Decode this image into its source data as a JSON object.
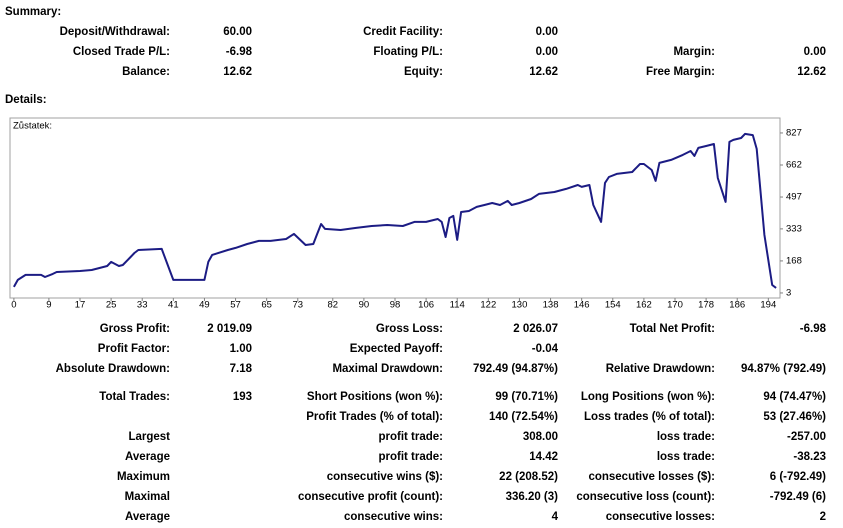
{
  "summary": {
    "title": "Summary:",
    "columns": [
      [
        {
          "label": "Deposit/Withdrawal:",
          "value": "60.00"
        },
        {
          "label": "Closed Trade P/L:",
          "value": "-6.98"
        },
        {
          "label": "Balance:",
          "value": "12.62"
        }
      ],
      [
        {
          "label": "Credit Facility:",
          "value": "0.00"
        },
        {
          "label": "Floating P/L:",
          "value": "0.00"
        },
        {
          "label": "Equity:",
          "value": "12.62"
        }
      ],
      [
        {
          "label": "Margin:",
          "value": "0.00"
        },
        {
          "label": "Free Margin:",
          "value": "12.62"
        }
      ]
    ]
  },
  "details": {
    "title": "Details:"
  },
  "chart_data": {
    "type": "line",
    "label": "Zůstatek:",
    "color": "#1c1c84",
    "x": [
      0,
      1,
      3,
      7,
      8,
      10,
      11,
      17,
      20,
      24,
      25,
      27,
      28,
      30,
      31,
      32,
      38,
      41,
      49,
      50,
      51,
      55,
      57,
      60,
      63,
      66,
      70,
      72,
      75,
      77,
      78,
      79,
      80,
      84,
      88,
      92,
      96,
      100,
      103,
      106,
      109,
      110,
      111,
      112,
      113,
      114,
      115,
      117,
      119,
      121,
      123,
      125,
      127,
      128,
      130,
      133,
      135,
      139,
      142,
      145,
      146,
      148,
      149,
      151,
      152,
      153,
      155,
      159,
      161,
      162,
      164,
      165,
      166,
      169,
      172,
      174,
      175,
      176,
      178,
      180,
      181,
      183,
      184,
      185,
      187,
      188,
      190,
      191,
      193,
      195,
      196
    ],
    "values": [
      34,
      70,
      96,
      96,
      85,
      101,
      111,
      116,
      121,
      142,
      163,
      142,
      147,
      188,
      209,
      224,
      230,
      70,
      70,
      163,
      199,
      224,
      235,
      255,
      271,
      271,
      281,
      307,
      250,
      255,
      307,
      358,
      333,
      327,
      338,
      348,
      353,
      348,
      369,
      369,
      384,
      369,
      291,
      389,
      400,
      276,
      420,
      425,
      446,
      456,
      466,
      456,
      477,
      456,
      466,
      487,
      513,
      523,
      539,
      559,
      549,
      559,
      456,
      369,
      570,
      600,
      616,
      626,
      667,
      667,
      636,
      580,
      673,
      688,
      714,
      734,
      709,
      750,
      760,
      770,
      595,
      472,
      781,
      791,
      801,
      822,
      816,
      745,
      302,
      44,
      29
    ],
    "xlim": [
      -1,
      197
    ],
    "ylim": [
      -23,
      904
    ],
    "xticks": [
      0,
      9,
      17,
      25,
      33,
      41,
      49,
      57,
      65,
      73,
      82,
      90,
      98,
      106,
      114,
      122,
      130,
      138,
      146,
      154,
      162,
      170,
      178,
      186,
      194
    ],
    "yticks": [
      3,
      168,
      333,
      497,
      662,
      827
    ]
  },
  "stats": {
    "rows": [
      [
        {
          "label": "Gross Profit:",
          "value": "2 019.09"
        },
        {
          "label": "Gross Loss:",
          "value": "2 026.07"
        },
        {
          "label": "Total Net Profit:",
          "value": "-6.98"
        }
      ],
      [
        {
          "label": "Profit Factor:",
          "value": "1.00"
        },
        {
          "label": "Expected Payoff:",
          "value": "-0.04"
        },
        null
      ],
      [
        {
          "label": "Absolute Drawdown:",
          "value": "7.18"
        },
        {
          "label": "Maximal Drawdown:",
          "value": "792.49 (94.87%)"
        },
        {
          "label": "Relative Drawdown:",
          "value": "94.87% (792.49)"
        }
      ],
      [
        {
          "label": "Total Trades:",
          "value": "193"
        },
        {
          "label": "Short Positions (won %):",
          "value": "99 (70.71%)"
        },
        {
          "label": "Long Positions (won %):",
          "value": "94 (74.47%)"
        }
      ],
      [
        null,
        {
          "label": "Profit Trades (% of total):",
          "value": "140 (72.54%)"
        },
        {
          "label": "Loss trades (% of total):",
          "value": "53 (27.46%)"
        }
      ],
      [
        {
          "label": "Largest"
        },
        {
          "label": "profit trade:",
          "value": "308.00"
        },
        {
          "label": "loss trade:",
          "value": "-257.00"
        }
      ],
      [
        {
          "label": "Average"
        },
        {
          "label": "profit trade:",
          "value": "14.42"
        },
        {
          "label": "loss trade:",
          "value": "-38.23"
        }
      ],
      [
        {
          "label": "Maximum"
        },
        {
          "label": "consecutive wins ($):",
          "value": "22 (208.52)"
        },
        {
          "label": "consecutive losses ($):",
          "value": "6 (-792.49)"
        }
      ],
      [
        {
          "label": "Maximal"
        },
        {
          "label": "consecutive profit (count):",
          "value": "336.20 (3)"
        },
        {
          "label": "consecutive loss (count):",
          "value": "-792.49 (6)"
        }
      ],
      [
        {
          "label": "Average"
        },
        {
          "label": "consecutive wins:",
          "value": "4"
        },
        {
          "label": "consecutive losses:",
          "value": "2"
        }
      ]
    ]
  }
}
